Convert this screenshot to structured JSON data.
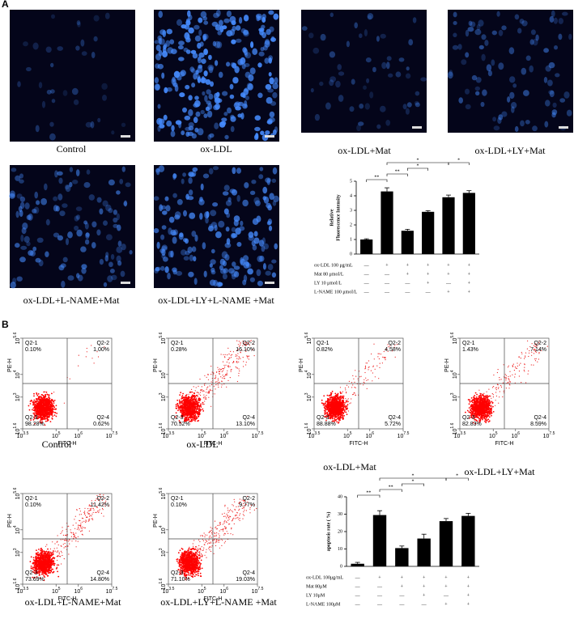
{
  "panel_a": {
    "label": "A",
    "images": [
      "Control",
      "ox-LDL",
      "ox-LDL+Mat",
      "ox-LDL+LY+Mat",
      "ox-LDL+L-NAME+Mat",
      "ox-LDL+LY+L-NAME +Mat"
    ]
  },
  "panel_b": {
    "label": "B",
    "xlabel": "FITC-H",
    "ylabel": "PE-H",
    "xlim": [
      3.5,
      7.5
    ],
    "xticks": [
      {
        "value": 3.5,
        "label": "10^3.5"
      },
      {
        "value": 5,
        "label": "10^5"
      },
      {
        "value": 6,
        "label": "10^6"
      },
      {
        "value": 7.5,
        "label": "10^7.5"
      }
    ],
    "ylim": [
      1.6,
      5.6
    ],
    "yticks": [
      {
        "value": 1.6,
        "label": "10^1.6"
      },
      {
        "value": 3,
        "label": "10^3"
      },
      {
        "value": 4,
        "label": "10^4"
      },
      {
        "value": 5.6,
        "label": "10^5.6"
      }
    ],
    "plots": [
      {
        "caption": "Control",
        "quadrants": [
          [
            "Q2-1",
            "0.10%"
          ],
          [
            "Q2-2",
            "1.00%"
          ],
          [
            "Q2-3",
            "98.28%"
          ],
          [
            "Q2-4",
            "0.62%"
          ]
        ]
      },
      {
        "caption": "ox-LDL",
        "quadrants": [
          [
            "Q2-1",
            "0.28%"
          ],
          [
            "Q2-2",
            "16.10%"
          ],
          [
            "Q2-3",
            "70.52%"
          ],
          [
            "Q2-4",
            "13.10%"
          ]
        ]
      },
      {
        "caption": "ox-LDL+Mat",
        "quadrants": [
          [
            "Q2-1",
            "0.82%"
          ],
          [
            "Q2-2",
            "4.58%"
          ],
          [
            "Q2-3",
            "88.88%"
          ],
          [
            "Q2-4",
            "5.72%"
          ]
        ]
      },
      {
        "caption": "ox-LDL+LY+Mat",
        "quadrants": [
          [
            "Q2-1",
            "1.43%"
          ],
          [
            "Q2-2",
            "7.14%"
          ],
          [
            "Q2-3",
            "82.83%"
          ],
          [
            "Q2-4",
            "8.59%"
          ]
        ]
      },
      {
        "caption": "ox-LDL+L-NAME+Mat",
        "quadrants": [
          [
            "Q2-1",
            "0.10%"
          ],
          [
            "Q2-2",
            "11.42%"
          ],
          [
            "Q2-3",
            "73.69%"
          ],
          [
            "Q2-4",
            "14.80%"
          ]
        ]
      },
      {
        "caption": "ox-LDL+LY+L-NAME +Mat",
        "quadrants": [
          [
            "Q2-1",
            "0.10%"
          ],
          [
            "Q2-2",
            "9.77%"
          ],
          [
            "Q2-3",
            "71.10%"
          ],
          [
            "Q2-4",
            "19.03%"
          ]
        ]
      }
    ]
  },
  "chart_data": [
    {
      "type": "bar",
      "ylabel": [
        "Relative",
        "Fluorescence Intensity"
      ],
      "ylim": [
        0,
        5
      ],
      "yticks": [
        0,
        1,
        2,
        3,
        4,
        5
      ],
      "values": [
        1.0,
        4.3,
        1.6,
        2.9,
        3.9,
        4.2
      ],
      "errors": [
        0.05,
        0.25,
        0.1,
        0.08,
        0.15,
        0.15
      ],
      "color": "#000000",
      "treatments": [
        {
          "name": "ox-LDL 100 μg/mL",
          "signs": [
            "—",
            "+",
            "+",
            "+",
            "+",
            "+"
          ]
        },
        {
          "name": "Mat 80 μmol/L",
          "signs": [
            "—",
            "—",
            "+",
            "+",
            "+",
            "+"
          ]
        },
        {
          "name": "LY 10 μmol/L",
          "signs": [
            "—",
            "—",
            "—",
            "+",
            "—",
            "+"
          ]
        },
        {
          "name": "L-NAME 100 μmol/L",
          "signs": [
            "—",
            "—",
            "—",
            "—",
            "+",
            "+"
          ]
        }
      ],
      "annotations": [
        "**",
        "*",
        "**",
        "*",
        "*"
      ]
    },
    {
      "type": "bar",
      "ylabel": [
        "apoptosis rate ( %)"
      ],
      "ylim": [
        0,
        40
      ],
      "yticks": [
        0,
        10,
        20,
        30,
        40
      ],
      "values": [
        1.5,
        29.5,
        10.5,
        16,
        26,
        29
      ],
      "errors": [
        0.8,
        2.5,
        1.2,
        2.5,
        1.5,
        1.5
      ],
      "color": "#000000",
      "treatments": [
        {
          "name": "ox-LDL 100μg/mL",
          "signs": [
            "—",
            "+",
            "+",
            "+",
            "+",
            "+"
          ]
        },
        {
          "name": "Mat 80μM",
          "signs": [
            "—",
            "—",
            "+",
            "+",
            "+",
            "+"
          ]
        },
        {
          "name": "LY 10μM",
          "signs": [
            "—",
            "—",
            "—",
            "+",
            "—",
            "+"
          ]
        },
        {
          "name": "L-NAME 100μM",
          "signs": [
            "—",
            "—",
            "—",
            "—",
            "+",
            "+"
          ]
        }
      ],
      "annotations": [
        "**",
        "*",
        "**",
        "*",
        "*"
      ]
    }
  ]
}
